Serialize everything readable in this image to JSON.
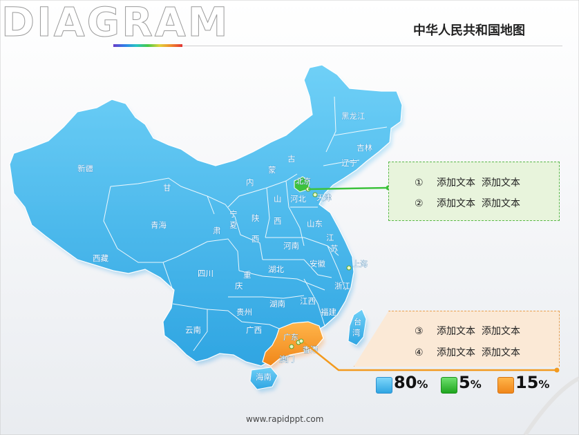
{
  "header": {
    "logo": "DIAGRAM",
    "title": "中华人民共和国地图"
  },
  "colors": {
    "map_blue": "#3fb3ea",
    "highlight_green": "#3cc23c",
    "highlight_orange": "#f39a1e"
  },
  "provinces": {
    "xinjiang": "新疆",
    "xizang": "西藏",
    "qinghai": "青海",
    "gansu_1": "甘",
    "gansu_2": "肃",
    "neimenggu_1": "内",
    "neimenggu_2": "蒙",
    "neimenggu_3": "古",
    "heilongjiang": "黑龙江",
    "jilin": "吉林",
    "liaoning": "辽宁",
    "beijing": "北京",
    "tianjin": "天津",
    "hebei": "河北",
    "shanxi_1": "山",
    "shanxi_2": "西",
    "shandong": "山东",
    "ningxia_1": "宁",
    "ningxia_2": "夏",
    "shaanxi_1": "陕",
    "shaanxi_2": "西",
    "henan": "河南",
    "jiangsu_1": "江",
    "jiangsu_2": "苏",
    "anhui": "安徽",
    "shanghai": "上海",
    "sichuan": "四川",
    "chongqing_1": "重",
    "chongqing_2": "庆",
    "hubei": "湖北",
    "zhejiang": "浙江",
    "guizhou": "贵州",
    "hunan": "湖南",
    "jiangxi": "江西",
    "fujian": "福建",
    "taiwan_1": "台",
    "taiwan_2": "湾",
    "yunnan": "云南",
    "guangxi": "广西",
    "guangdong": "广东",
    "xianggang": "香港",
    "aomen": "澳门",
    "hainan": "海南"
  },
  "callouts": [
    {
      "num": "①",
      "text1": "添加文本",
      "text2": "添加文本"
    },
    {
      "num": "②",
      "text1": "添加文本",
      "text2": "添加文本"
    },
    {
      "num": "③",
      "text1": "添加文本",
      "text2": "添加文本"
    },
    {
      "num": "④",
      "text1": "添加文本",
      "text2": "添加文本"
    }
  ],
  "legend": [
    {
      "value": "80",
      "unit": "%",
      "color": "#3fb3ea"
    },
    {
      "value": "5",
      "unit": "%",
      "color": "#3cc23c"
    },
    {
      "value": "15",
      "unit": "%",
      "color": "#f39a1e"
    }
  ],
  "footer": {
    "url": "www.rapidppt.com"
  }
}
